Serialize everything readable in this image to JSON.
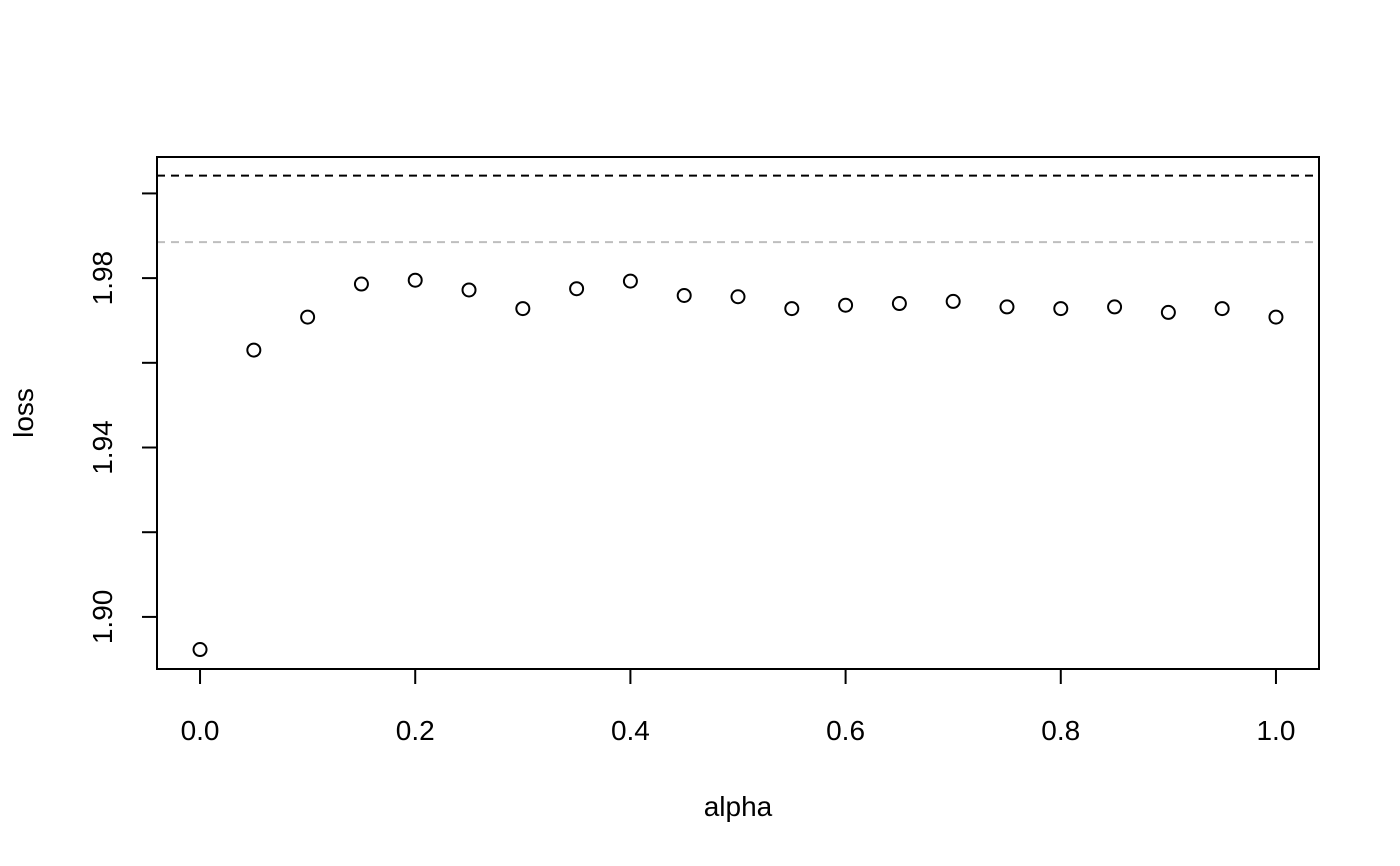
{
  "chart_data": {
    "type": "scatter",
    "title": "",
    "xlabel": "alpha",
    "ylabel": "loss",
    "xlim": [
      -0.04,
      1.04
    ],
    "ylim": [
      1.8877,
      2.0086
    ],
    "x_ticks": [
      0.0,
      0.2,
      0.4,
      0.6,
      0.8,
      1.0
    ],
    "x_tick_labels": [
      "0.0",
      "0.2",
      "0.4",
      "0.6",
      "0.8",
      "1.0"
    ],
    "y_ticks": [
      1.9,
      1.92,
      1.94,
      1.96,
      1.98,
      2.0
    ],
    "y_tick_labels": [
      "1.90",
      "",
      "1.94",
      "",
      "1.98",
      ""
    ],
    "grid": false,
    "legend": "none",
    "point_style": "open-circle",
    "series": [
      {
        "x": [
          0.0,
          0.05,
          0.1,
          0.15,
          0.2,
          0.25,
          0.3,
          0.35,
          0.4,
          0.45,
          0.5,
          0.55,
          0.6,
          0.65,
          0.7,
          0.75,
          0.8,
          0.85,
          0.9,
          0.95,
          1.0
        ],
        "values": [
          1.8923,
          1.963,
          1.9708,
          1.9786,
          1.9795,
          1.9772,
          1.9728,
          1.9775,
          1.9793,
          1.9759,
          1.9756,
          1.9728,
          1.9736,
          1.974,
          1.9745,
          1.9732,
          1.9728,
          1.9732,
          1.9719,
          1.9728,
          1.9708
        ],
        "color": "#000000"
      }
    ],
    "reference_lines": [
      {
        "y": 2.0042,
        "style": "dashed",
        "color": "#000000"
      },
      {
        "y": 1.9885,
        "style": "dashed",
        "color": "#bebebe"
      }
    ]
  }
}
